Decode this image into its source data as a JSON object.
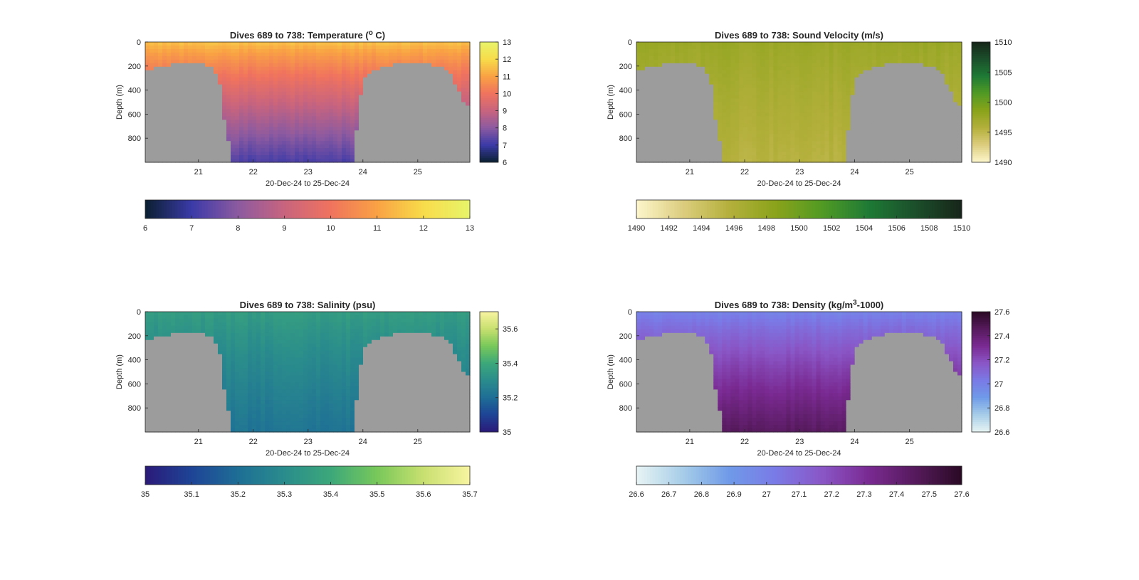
{
  "figure": {
    "panels": [
      {
        "id": "temperature",
        "title_text": "Dives 689 to 738: Temperature (",
        "title_sup": "o",
        "title_tail": " C)",
        "ylabel": "Depth (m)",
        "xlabel": "20-Dec-24 to 25-Dec-24",
        "x_ticks": [
          "21",
          "22",
          "23",
          "24",
          "25"
        ],
        "y_ticks": [
          "0",
          "200",
          "400",
          "600",
          "800"
        ],
        "cbar_ticks": [
          "6",
          "7",
          "8",
          "9",
          "10",
          "11",
          "12",
          "13"
        ],
        "hbar_ticks": [
          "6",
          "7",
          "8",
          "9",
          "10",
          "11",
          "12",
          "13"
        ]
      },
      {
        "id": "sound-velocity",
        "title_text": "Dives 689 to 738: Sound Velocity (m/s)",
        "title_sup": "",
        "title_tail": "",
        "ylabel": "Depth (m)",
        "xlabel": "20-Dec-24 to 25-Dec-24",
        "x_ticks": [
          "21",
          "22",
          "23",
          "24",
          "25"
        ],
        "y_ticks": [
          "0",
          "200",
          "400",
          "600",
          "800"
        ],
        "cbar_ticks": [
          "1490",
          "1495",
          "1500",
          "1505",
          "1510"
        ],
        "hbar_ticks": [
          "1490",
          "1492",
          "1494",
          "1496",
          "1498",
          "1500",
          "1502",
          "1504",
          "1506",
          "1508",
          "1510"
        ]
      },
      {
        "id": "salinity",
        "title_text": "Dives 689 to 738: Salinity (psu)",
        "title_sup": "",
        "title_tail": "",
        "ylabel": "Depth (m)",
        "xlabel": "20-Dec-24 to 25-Dec-24",
        "x_ticks": [
          "21",
          "22",
          "23",
          "24",
          "25"
        ],
        "y_ticks": [
          "0",
          "200",
          "400",
          "600",
          "800"
        ],
        "cbar_ticks": [
          "35",
          "35.2",
          "35.4",
          "35.6"
        ],
        "hbar_ticks": [
          "35",
          "35.1",
          "35.2",
          "35.3",
          "35.4",
          "35.5",
          "35.6",
          "35.7"
        ]
      },
      {
        "id": "density",
        "title_text": "Dives 689 to 738: Density (kg/m",
        "title_sup": "3",
        "title_tail": "-1000)",
        "ylabel": "Depth (m)",
        "xlabel": "20-Dec-24 to 25-Dec-24",
        "x_ticks": [
          "21",
          "22",
          "23",
          "24",
          "25"
        ],
        "y_ticks": [
          "0",
          "200",
          "400",
          "600",
          "800"
        ],
        "cbar_ticks": [
          "26.6",
          "26.8",
          "27",
          "27.2",
          "27.4",
          "27.6"
        ],
        "hbar_ticks": [
          "26.6",
          "26.7",
          "26.8",
          "26.9",
          "27",
          "27.1",
          "27.2",
          "27.3",
          "27.4",
          "27.5",
          "27.6"
        ]
      }
    ]
  },
  "chart_data": [
    {
      "type": "heatmap",
      "title": "Dives 689 to 738: Temperature (o C)",
      "xlabel": "20-Dec-24 to 25-Dec-24",
      "ylabel": "Depth (m)",
      "x_range_days": [
        20.03,
        25.95
      ],
      "ylim": [
        1000,
        0
      ],
      "y_reversed": true,
      "x_ticks": [
        21,
        22,
        23,
        24,
        25
      ],
      "y_ticks": [
        0,
        200,
        400,
        600,
        800
      ],
      "colorbar": {
        "range": [
          6,
          13
        ],
        "ticks": [
          6,
          7,
          8,
          9,
          10,
          11,
          12,
          13
        ],
        "palette": [
          "#0b2031",
          "#3b3aa8",
          "#8c5aa0",
          "#c8647e",
          "#f0735e",
          "#f9a244",
          "#f8dc4a",
          "#e8f46a"
        ]
      },
      "surface_value": 11.6,
      "deep_value": 7.2,
      "no_data_color": "#9c9c9c"
    },
    {
      "type": "heatmap",
      "title": "Dives 689 to 738: Sound Velocity (m/s)",
      "xlabel": "20-Dec-24 to 25-Dec-24",
      "ylabel": "Depth (m)",
      "x_range_days": [
        20.03,
        25.95
      ],
      "ylim": [
        1000,
        0
      ],
      "y_reversed": true,
      "x_ticks": [
        21,
        22,
        23,
        24,
        25
      ],
      "y_ticks": [
        0,
        200,
        400,
        600,
        800
      ],
      "colorbar": {
        "range": [
          1490,
          1510
        ],
        "ticks": [
          1490,
          1492,
          1494,
          1496,
          1498,
          1500,
          1502,
          1504,
          1506,
          1508,
          1510
        ],
        "palette": [
          "#fdf6cc",
          "#dccd7e",
          "#b4b03c",
          "#8aa31a",
          "#519a24",
          "#1e7a35",
          "#1b4f2b",
          "#172519"
        ]
      },
      "surface_value": 1497.5,
      "deep_value": 1495.5,
      "no_data_color": "#9c9c9c"
    },
    {
      "type": "heatmap",
      "title": "Dives 689 to 738: Salinity (psu)",
      "xlabel": "20-Dec-24 to 25-Dec-24",
      "ylabel": "Depth (m)",
      "x_range_days": [
        20.03,
        25.95
      ],
      "ylim": [
        1000,
        0
      ],
      "y_reversed": true,
      "x_ticks": [
        21,
        22,
        23,
        24,
        25
      ],
      "y_ticks": [
        0,
        200,
        400,
        600,
        800
      ],
      "colorbar": {
        "range": [
          35,
          35.7
        ],
        "ticks": [
          35,
          35.1,
          35.2,
          35.3,
          35.4,
          35.5,
          35.6,
          35.7
        ],
        "palette": [
          "#2a1a78",
          "#1e4496",
          "#1e6e96",
          "#2a8c8c",
          "#3ca87a",
          "#78c85a",
          "#c8e070",
          "#f8f4a0"
        ]
      },
      "surface_value": 35.36,
      "deep_value": 35.22,
      "no_data_color": "#9c9c9c"
    },
    {
      "type": "heatmap",
      "title": "Dives 689 to 738: Density (kg/m3-1000)",
      "xlabel": "20-Dec-24 to 25-Dec-24",
      "ylabel": "Depth (m)",
      "x_range_days": [
        20.03,
        25.95
      ],
      "ylim": [
        1000,
        0
      ],
      "y_reversed": true,
      "x_ticks": [
        21,
        22,
        23,
        24,
        25
      ],
      "y_ticks": [
        0,
        200,
        400,
        600,
        800
      ],
      "colorbar": {
        "range": [
          26.6,
          27.6
        ],
        "ticks": [
          26.6,
          26.7,
          26.8,
          26.9,
          27,
          27.1,
          27.2,
          27.3,
          27.4,
          27.5,
          27.6
        ],
        "palette": [
          "#e8f4f4",
          "#a6cde8",
          "#6f9ae8",
          "#7a7ae6",
          "#8a56c6",
          "#7a2a92",
          "#561a5c",
          "#2a0a24"
        ]
      },
      "surface_value": 26.98,
      "deep_value": 27.45,
      "no_data_color": "#9c9c9c"
    }
  ]
}
